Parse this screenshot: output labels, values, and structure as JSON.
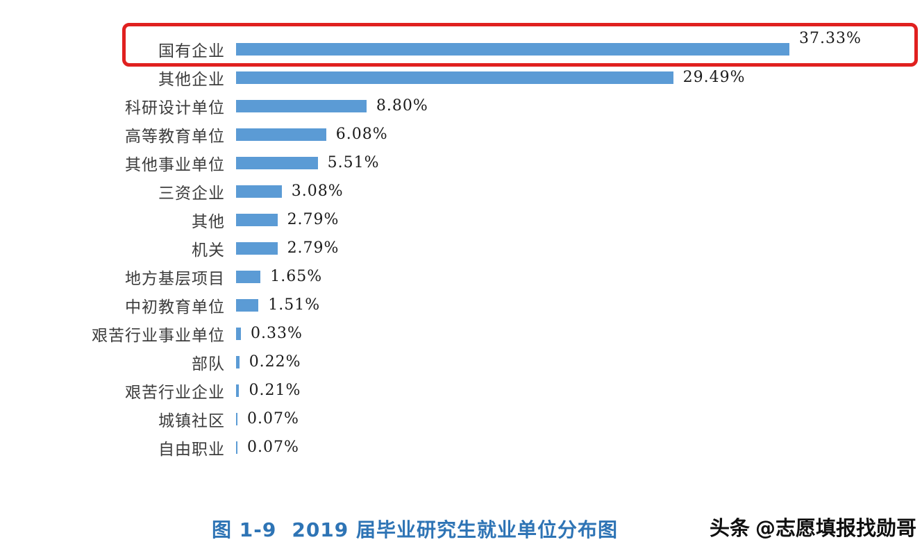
{
  "chart_data": {
    "type": "bar",
    "orientation": "horizontal",
    "title": "图 1-9　2019 届毕业研究生就业单位分布图",
    "categories": [
      "国有企业",
      "其他企业",
      "科研设计单位",
      "高等教育单位",
      "其他事业单位",
      "三资企业",
      "其他",
      "机关",
      "地方基层项目",
      "中初教育单位",
      "艰苦行业事业单位",
      "部队",
      "艰苦行业企业",
      "城镇社区",
      "自由职业"
    ],
    "values": [
      37.33,
      29.49,
      8.8,
      6.08,
      5.51,
      3.08,
      2.79,
      2.79,
      1.65,
      1.51,
      0.33,
      0.22,
      0.21,
      0.07,
      0.07
    ],
    "value_labels": [
      "37.33%",
      "29.49%",
      "8.80%",
      "6.08%",
      "5.51%",
      "3.08%",
      "2.79%",
      "2.79%",
      "1.65%",
      "1.51%",
      "0.33%",
      "0.22%",
      "0.21%",
      "0.07%",
      "0.07%"
    ],
    "xlim": [
      0,
      40
    ],
    "bar_color": "#5b9bd5",
    "grid": false,
    "legend": "none",
    "highlight": {
      "category": "国有企业",
      "color": "#e0201f",
      "style": "red-rounded-rectangle"
    }
  },
  "caption": {
    "figure_label": "图 1-9",
    "title": "2019 届毕业研究生就业单位分布图"
  },
  "watermark": {
    "brand": "头条",
    "handle": "@志愿填报找勋哥"
  }
}
